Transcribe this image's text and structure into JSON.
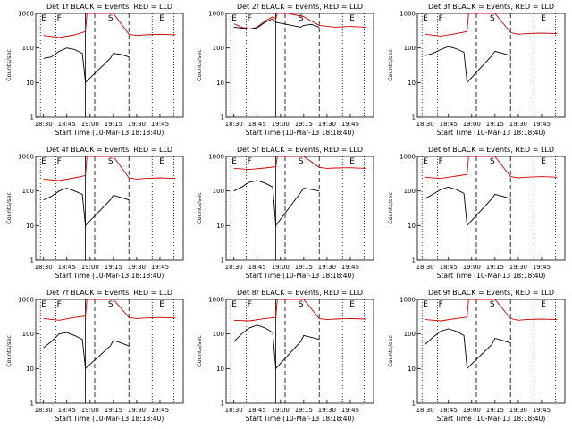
{
  "chart_data": [
    {
      "type": "line",
      "title": "Det 1f BLACK = Events, RED = LLD",
      "xlabel": "Start Time (10-Mar-13 18:18:40)",
      "ylabel": "Counts/sec",
      "log_y": true,
      "ylim": [
        1,
        1000
      ],
      "y_ticks": [
        "1",
        "10",
        "100",
        "1000"
      ],
      "x_ticks": [
        "18:30",
        "18:45",
        "19:00",
        "19:15",
        "19:30",
        "19:45"
      ],
      "markers": [
        "E",
        "F",
        "S",
        "E"
      ],
      "series": [
        {
          "color": "#cc0000",
          "x": [
            0,
            10,
            20,
            27,
            28,
            35,
            45,
            55,
            60,
            65,
            75,
            85
          ],
          "values": [
            230,
            200,
            240,
            300,
            1000,
            1000,
            1000,
            250,
            230,
            240,
            250,
            240
          ]
        },
        {
          "color": "#000000",
          "x": [
            0,
            5,
            10,
            15,
            20,
            25,
            27,
            43,
            45,
            50,
            55
          ],
          "values": [
            50,
            55,
            80,
            100,
            90,
            70,
            10,
            50,
            70,
            65,
            55
          ]
        }
      ]
    },
    {
      "type": "line",
      "title": "Det 2f BLACK = Events, RED = LLD",
      "xlabel": "Start Time (10-Mar-13 18:18:40)",
      "ylabel": "Counts/sec",
      "log_y": true,
      "ylim": [
        1,
        1000
      ],
      "y_ticks": [
        "1",
        "10",
        "100",
        "1000"
      ],
      "x_ticks": [
        "18:30",
        "18:45",
        "19:00",
        "19:15",
        "19:30",
        "19:45"
      ],
      "markers": [
        "E",
        "F",
        "S",
        "E"
      ],
      "series": [
        {
          "color": "#cc0000",
          "x": [
            0,
            5,
            10,
            15,
            20,
            25,
            27,
            28,
            35,
            45,
            55,
            65,
            75,
            85
          ],
          "values": [
            500,
            400,
            350,
            400,
            600,
            800,
            700,
            1000,
            1000,
            800,
            450,
            400,
            420,
            400
          ]
        },
        {
          "color": "#000000",
          "x": [
            0,
            10,
            15,
            20,
            25,
            27,
            43,
            45,
            50,
            55
          ],
          "values": [
            400,
            350,
            380,
            550,
            700,
            550,
            400,
            450,
            480,
            400
          ]
        }
      ]
    },
    {
      "type": "line",
      "title": "Det 3f BLACK = Events, RED = LLD",
      "xlabel": "Start Time (10-Mar-13 18:18:40)",
      "ylabel": "Counts/sec",
      "log_y": true,
      "ylim": [
        1,
        1000
      ],
      "y_ticks": [
        "1",
        "10",
        "100",
        "1000"
      ],
      "x_ticks": [
        "18:30",
        "18:45",
        "19:00",
        "19:15",
        "19:30",
        "19:45"
      ],
      "markers": [
        "E",
        "F",
        "S",
        "E"
      ],
      "series": [
        {
          "color": "#cc0000",
          "x": [
            0,
            10,
            20,
            27,
            28,
            35,
            45,
            55,
            60,
            65,
            75,
            85
          ],
          "values": [
            250,
            220,
            260,
            300,
            1000,
            1000,
            1000,
            280,
            250,
            260,
            270,
            260
          ]
        },
        {
          "color": "#000000",
          "x": [
            0,
            5,
            10,
            15,
            20,
            25,
            27,
            43,
            45,
            50,
            55
          ],
          "values": [
            60,
            70,
            90,
            110,
            95,
            75,
            10,
            60,
            80,
            70,
            60
          ]
        }
      ]
    },
    {
      "type": "line",
      "title": "Det 4f BLACK = Events, RED = LLD",
      "xlabel": "Start Time (10-Mar-13 18:18:40)",
      "ylabel": "Counts/sec",
      "log_y": true,
      "ylim": [
        1,
        1000
      ],
      "y_ticks": [
        "1",
        "10",
        "100",
        "1000"
      ],
      "x_ticks": [
        "18:30",
        "18:45",
        "19:00",
        "19:15",
        "19:30",
        "19:45"
      ],
      "markers": [
        "E",
        "F",
        "S",
        "E"
      ],
      "series": [
        {
          "color": "#cc0000",
          "x": [
            0,
            10,
            20,
            27,
            28,
            35,
            45,
            55,
            60,
            65,
            75,
            85
          ],
          "values": [
            220,
            200,
            240,
            280,
            1000,
            1000,
            1000,
            240,
            220,
            230,
            240,
            230
          ]
        },
        {
          "color": "#000000",
          "x": [
            0,
            5,
            10,
            15,
            20,
            25,
            27,
            43,
            45,
            50,
            55
          ],
          "values": [
            55,
            70,
            100,
            120,
            100,
            80,
            10,
            55,
            75,
            65,
            55
          ]
        }
      ]
    },
    {
      "type": "line",
      "title": "Det 5f BLACK = Events, RED = LLD",
      "xlabel": "Start Time (10-Mar-13 18:18:40)",
      "ylabel": "Counts/sec",
      "log_y": true,
      "ylim": [
        1,
        1000
      ],
      "y_ticks": [
        "1",
        "10",
        "100",
        "1000"
      ],
      "x_ticks": [
        "18:30",
        "18:45",
        "19:00",
        "19:15",
        "19:30",
        "19:45"
      ],
      "markers": [
        "E",
        "F",
        "S",
        "E"
      ],
      "series": [
        {
          "color": "#cc0000",
          "x": [
            0,
            10,
            20,
            27,
            28,
            35,
            45,
            55,
            60,
            65,
            75,
            85
          ],
          "values": [
            450,
            420,
            460,
            500,
            1000,
            1000,
            1000,
            480,
            450,
            460,
            470,
            450
          ]
        },
        {
          "color": "#000000",
          "x": [
            0,
            5,
            10,
            15,
            20,
            25,
            27,
            43,
            45,
            50,
            55
          ],
          "values": [
            100,
            130,
            180,
            200,
            170,
            130,
            10,
            90,
            120,
            110,
            100
          ]
        }
      ]
    },
    {
      "type": "line",
      "title": "Det 6f BLACK = Events, RED = LLD",
      "xlabel": "Start Time (10-Mar-13 18:18:40)",
      "ylabel": "Counts/sec",
      "log_y": true,
      "ylim": [
        1,
        1000
      ],
      "y_ticks": [
        "1",
        "10",
        "100",
        "1000"
      ],
      "x_ticks": [
        "18:30",
        "18:45",
        "19:00",
        "19:15",
        "19:30",
        "19:45"
      ],
      "markers": [
        "E",
        "F",
        "S",
        "E"
      ],
      "series": [
        {
          "color": "#cc0000",
          "x": [
            0,
            10,
            20,
            27,
            28,
            35,
            45,
            55,
            60,
            65,
            75,
            85
          ],
          "values": [
            250,
            230,
            270,
            300,
            1000,
            1000,
            1000,
            260,
            240,
            250,
            260,
            250
          ]
        },
        {
          "color": "#000000",
          "x": [
            0,
            5,
            10,
            15,
            20,
            25,
            27,
            43,
            45,
            50,
            55
          ],
          "values": [
            60,
            80,
            110,
            130,
            110,
            85,
            10,
            60,
            80,
            70,
            60
          ]
        }
      ]
    },
    {
      "type": "line",
      "title": "Det 7f BLACK = Events, RED = LLD",
      "xlabel": "Start Time (10-Mar-13 18:18:40)",
      "ylabel": "Counts/sec",
      "log_y": true,
      "ylim": [
        1,
        1000
      ],
      "y_ticks": [
        "1",
        "10",
        "100",
        "1000"
      ],
      "x_ticks": [
        "18:30",
        "18:45",
        "19:00",
        "19:15",
        "19:30",
        "19:45"
      ],
      "markers": [
        "E",
        "F",
        "S",
        "E"
      ],
      "series": [
        {
          "color": "#cc0000",
          "x": [
            0,
            10,
            20,
            27,
            28,
            35,
            45,
            55,
            60,
            65,
            75,
            85
          ],
          "values": [
            280,
            250,
            300,
            330,
            1000,
            1000,
            1000,
            300,
            280,
            290,
            300,
            290
          ]
        },
        {
          "color": "#000000",
          "x": [
            0,
            5,
            10,
            15,
            20,
            25,
            27,
            43,
            45,
            50,
            55
          ],
          "values": [
            40,
            60,
            100,
            110,
            90,
            70,
            10,
            45,
            65,
            55,
            45
          ]
        }
      ]
    },
    {
      "type": "line",
      "title": "Det 8f BLACK = Events, RED = LLD",
      "xlabel": "Start Time (10-Mar-13 18:18:40)",
      "ylabel": "Counts/sec",
      "log_y": true,
      "ylim": [
        1,
        1000
      ],
      "y_ticks": [
        "1",
        "10",
        "100",
        "1000"
      ],
      "x_ticks": [
        "18:30",
        "18:45",
        "19:00",
        "19:15",
        "19:30",
        "19:45"
      ],
      "markers": [
        "E",
        "F",
        "S",
        "E"
      ],
      "series": [
        {
          "color": "#cc0000",
          "x": [
            0,
            10,
            20,
            27,
            28,
            35,
            45,
            55,
            60,
            65,
            75,
            85
          ],
          "values": [
            250,
            240,
            280,
            300,
            1000,
            1000,
            1000,
            280,
            260,
            270,
            280,
            270
          ]
        },
        {
          "color": "#000000",
          "x": [
            0,
            5,
            10,
            15,
            20,
            25,
            27,
            43,
            45,
            50,
            55
          ],
          "values": [
            60,
            100,
            150,
            180,
            150,
            110,
            10,
            60,
            90,
            80,
            70
          ]
        }
      ]
    },
    {
      "type": "line",
      "title": "Det 9f BLACK = Events, RED = LLD",
      "xlabel": "Start Time (10-Mar-13 18:18:40)",
      "ylabel": "Counts/sec",
      "log_y": true,
      "ylim": [
        1,
        1000
      ],
      "y_ticks": [
        "1",
        "10",
        "100",
        "1000"
      ],
      "x_ticks": [
        "18:30",
        "18:45",
        "19:00",
        "19:15",
        "19:30",
        "19:45"
      ],
      "markers": [
        "E",
        "F",
        "S",
        "E"
      ],
      "series": [
        {
          "color": "#cc0000",
          "x": [
            0,
            10,
            20,
            27,
            28,
            35,
            45,
            55,
            60,
            65,
            75,
            85
          ],
          "values": [
            260,
            240,
            280,
            310,
            1000,
            1000,
            1000,
            280,
            250,
            260,
            270,
            260
          ]
        },
        {
          "color": "#000000",
          "x": [
            0,
            5,
            10,
            15,
            20,
            25,
            27,
            43,
            45,
            50,
            55
          ],
          "values": [
            50,
            80,
            120,
            140,
            120,
            90,
            10,
            50,
            75,
            65,
            55
          ]
        }
      ]
    }
  ]
}
